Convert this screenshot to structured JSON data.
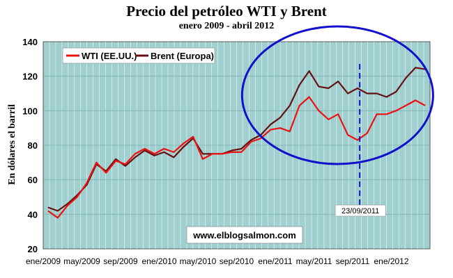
{
  "chart_data": {
    "type": "line",
    "title": "Precio del petróleo WTI y Brent",
    "subtitle": "enero 2009 - abril 2012",
    "xlabel": "",
    "ylabel": "En dólares el barril",
    "ylim": [
      20,
      140
    ],
    "yticks": [
      20,
      40,
      60,
      80,
      100,
      120,
      140
    ],
    "xlim": [
      "2009-01",
      "2012-04"
    ],
    "xticks": [
      "ene/2009",
      "may/2009",
      "sep/2009",
      "ene/2010",
      "may/2010",
      "sep/2010",
      "ene/2011",
      "may/2011",
      "sep/2011",
      "ene/2012"
    ],
    "grid": true,
    "legend_position": "top-left",
    "colors": {
      "wti": "#ee1111",
      "brent": "#661111",
      "circle": "#1111cc",
      "marker": "#1111cc",
      "plot_bg": "#9fcfcf"
    },
    "series": [
      {
        "name": "WTI (EE.UU.)",
        "x": [
          "2009-01",
          "2009-02",
          "2009-03",
          "2009-04",
          "2009-05",
          "2009-06",
          "2009-07",
          "2009-08",
          "2009-09",
          "2009-10",
          "2009-11",
          "2009-12",
          "2010-01",
          "2010-02",
          "2010-03",
          "2010-04",
          "2010-05",
          "2010-06",
          "2010-07",
          "2010-08",
          "2010-09",
          "2010-10",
          "2010-11",
          "2010-12",
          "2011-01",
          "2011-02",
          "2011-03",
          "2011-04",
          "2011-05",
          "2011-06",
          "2011-07",
          "2011-08",
          "2011-09",
          "2011-10",
          "2011-11",
          "2011-12",
          "2012-01",
          "2012-02",
          "2012-03",
          "2012-04"
        ],
        "values": [
          42,
          38,
          45,
          50,
          58,
          70,
          64,
          71,
          69,
          75,
          78,
          75,
          78,
          76,
          81,
          85,
          72,
          75,
          75,
          76,
          76,
          82,
          84,
          89,
          90,
          88,
          103,
          108,
          100,
          95,
          98,
          86,
          83,
          87,
          98,
          98,
          100,
          103,
          106,
          103
        ]
      },
      {
        "name": "Brent (Europa)",
        "x": [
          "2009-01",
          "2009-02",
          "2009-03",
          "2009-04",
          "2009-05",
          "2009-06",
          "2009-07",
          "2009-08",
          "2009-09",
          "2009-10",
          "2009-11",
          "2009-12",
          "2010-01",
          "2010-02",
          "2010-03",
          "2010-04",
          "2010-05",
          "2010-06",
          "2010-07",
          "2010-08",
          "2010-09",
          "2010-10",
          "2010-11",
          "2010-12",
          "2011-01",
          "2011-02",
          "2011-03",
          "2011-04",
          "2011-05",
          "2011-06",
          "2011-07",
          "2011-08",
          "2011-09",
          "2011-10",
          "2011-11",
          "2011-12",
          "2012-01",
          "2012-02",
          "2012-03",
          "2012-04"
        ],
        "values": [
          44,
          42,
          46,
          51,
          57,
          69,
          65,
          72,
          68,
          73,
          77,
          74,
          76,
          73,
          79,
          84,
          75,
          75,
          75,
          77,
          78,
          83,
          86,
          92,
          96,
          103,
          115,
          123,
          114,
          113,
          117,
          110,
          113,
          110,
          110,
          108,
          111,
          119,
          125,
          124
        ]
      }
    ],
    "annotations": [
      {
        "label": "23/09/2011",
        "x": "2011-09-23"
      },
      {
        "label": "www.elblogsalmon.com"
      }
    ]
  }
}
